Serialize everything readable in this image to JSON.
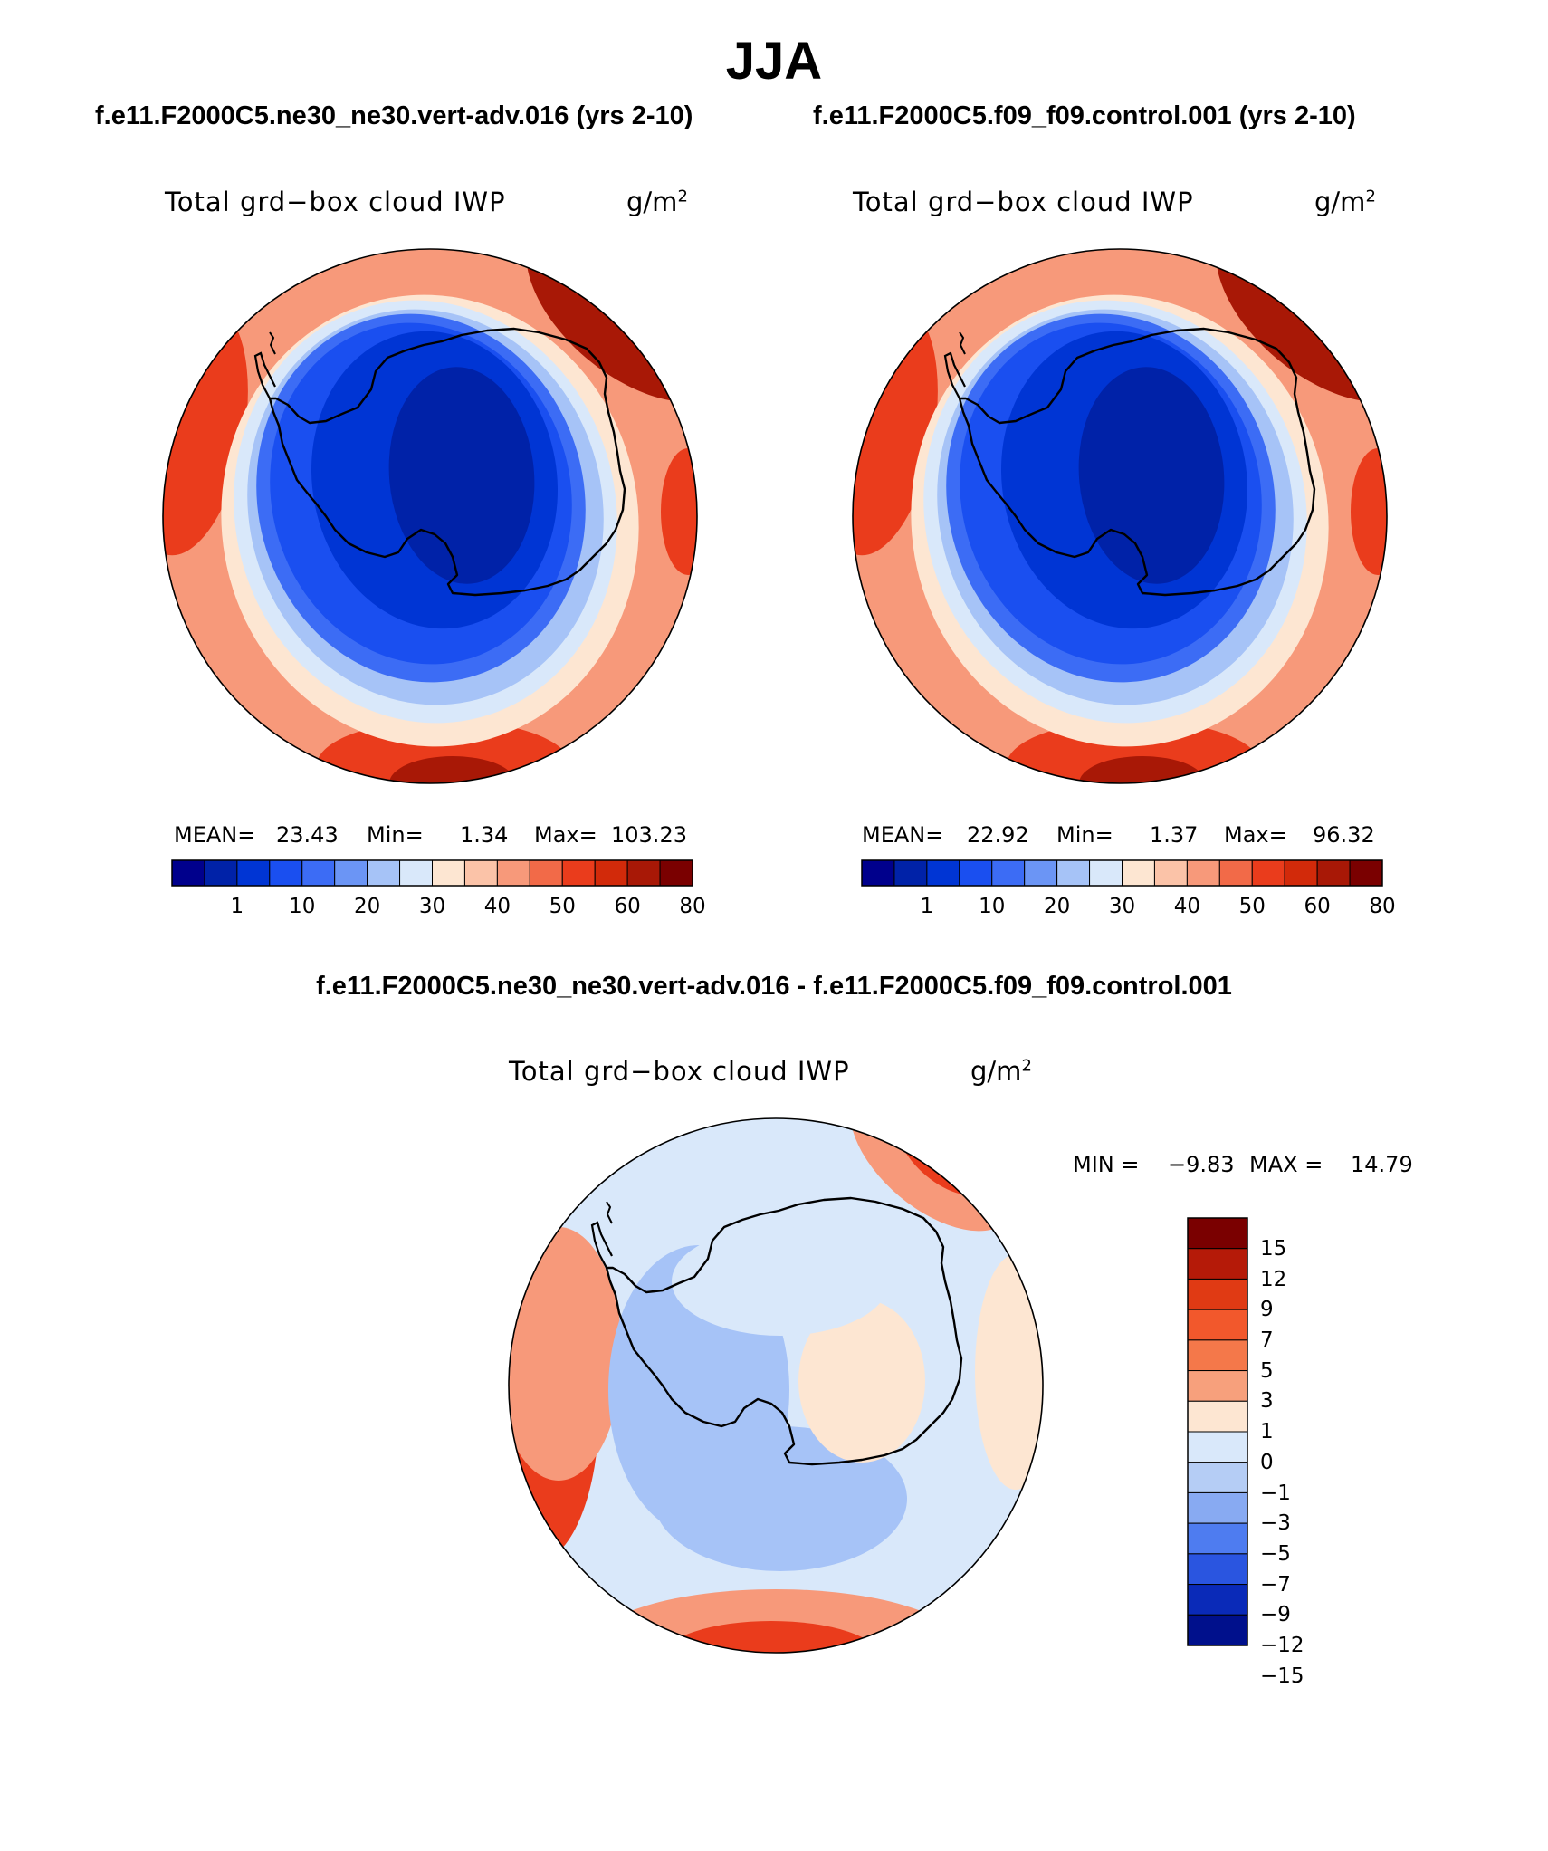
{
  "season": "JJA",
  "panels": [
    {
      "case_title": "f.e11.F2000C5.ne30_ne30.vert-adv.016 (yrs 2-10)",
      "variable": "Total grd−box cloud IWP",
      "units": "g/m",
      "units_exp": "2",
      "mean_label": "MEAN=",
      "mean": "23.43",
      "min_label": "Min=",
      "min": "1.34",
      "max_label": "Max=",
      "max": "103.23"
    },
    {
      "case_title": "f.e11.F2000C5.f09_f09.control.001 (yrs 2-10)",
      "variable": "Total grd−box cloud IWP",
      "units": "g/m",
      "units_exp": "2",
      "mean_label": "MEAN=",
      "mean": "22.92",
      "min_label": "Min=",
      "min": "1.37",
      "max_label": "Max=",
      "max": "96.32"
    }
  ],
  "diff_panel": {
    "title": "f.e11.F2000C5.ne30_ne30.vert-adv.016 - f.e11.F2000C5.f09_f09.control.001",
    "variable": "Total grd−box cloud IWP",
    "units": "g/m",
    "units_exp": "2",
    "min_label": "MIN =",
    "min": "−9.83",
    "max_label": "MAX =",
    "max": "14.79"
  },
  "abs_colorbar": {
    "colors": [
      "#00008c",
      "#0022a8",
      "#0035d4",
      "#1a4ff0",
      "#3c6cf5",
      "#6b95f5",
      "#a6c3f7",
      "#d9e8fa",
      "#fde6d2",
      "#fbc3a8",
      "#f7997a",
      "#f26a48",
      "#ea3c1c",
      "#d22a0a",
      "#a81806",
      "#7a0000"
    ],
    "ticks": [
      "1",
      "10",
      "20",
      "30",
      "40",
      "50",
      "60",
      "80"
    ]
  },
  "diff_colorbar": {
    "colors_top_to_bottom": [
      "#7a0000",
      "#b51a08",
      "#e03a14",
      "#f2582c",
      "#f4784a",
      "#f7a07c",
      "#fde6d2",
      "#d9e8fa",
      "#b5cdf5",
      "#88aaf2",
      "#4e7cf0",
      "#2a55e0",
      "#0a2ab8",
      "#00108c"
    ],
    "ticks_top_to_bottom": [
      "15",
      "12",
      "9",
      "7",
      "5",
      "3",
      "1",
      "0",
      "−1",
      "−3",
      "−5",
      "−7",
      "−9",
      "−12",
      "−15"
    ]
  },
  "map_colors": {
    "deep_red": "#a81806",
    "red": "#ea3c1c",
    "salmon": "#f7997a",
    "peach": "#fde6d2",
    "pale_blue": "#d9e8fa",
    "light_blue": "#a6c3f7",
    "mid_blue": "#3c6cf5",
    "blue": "#1a4ff0",
    "dark_blue": "#0035d4",
    "navy": "#0022a8"
  }
}
